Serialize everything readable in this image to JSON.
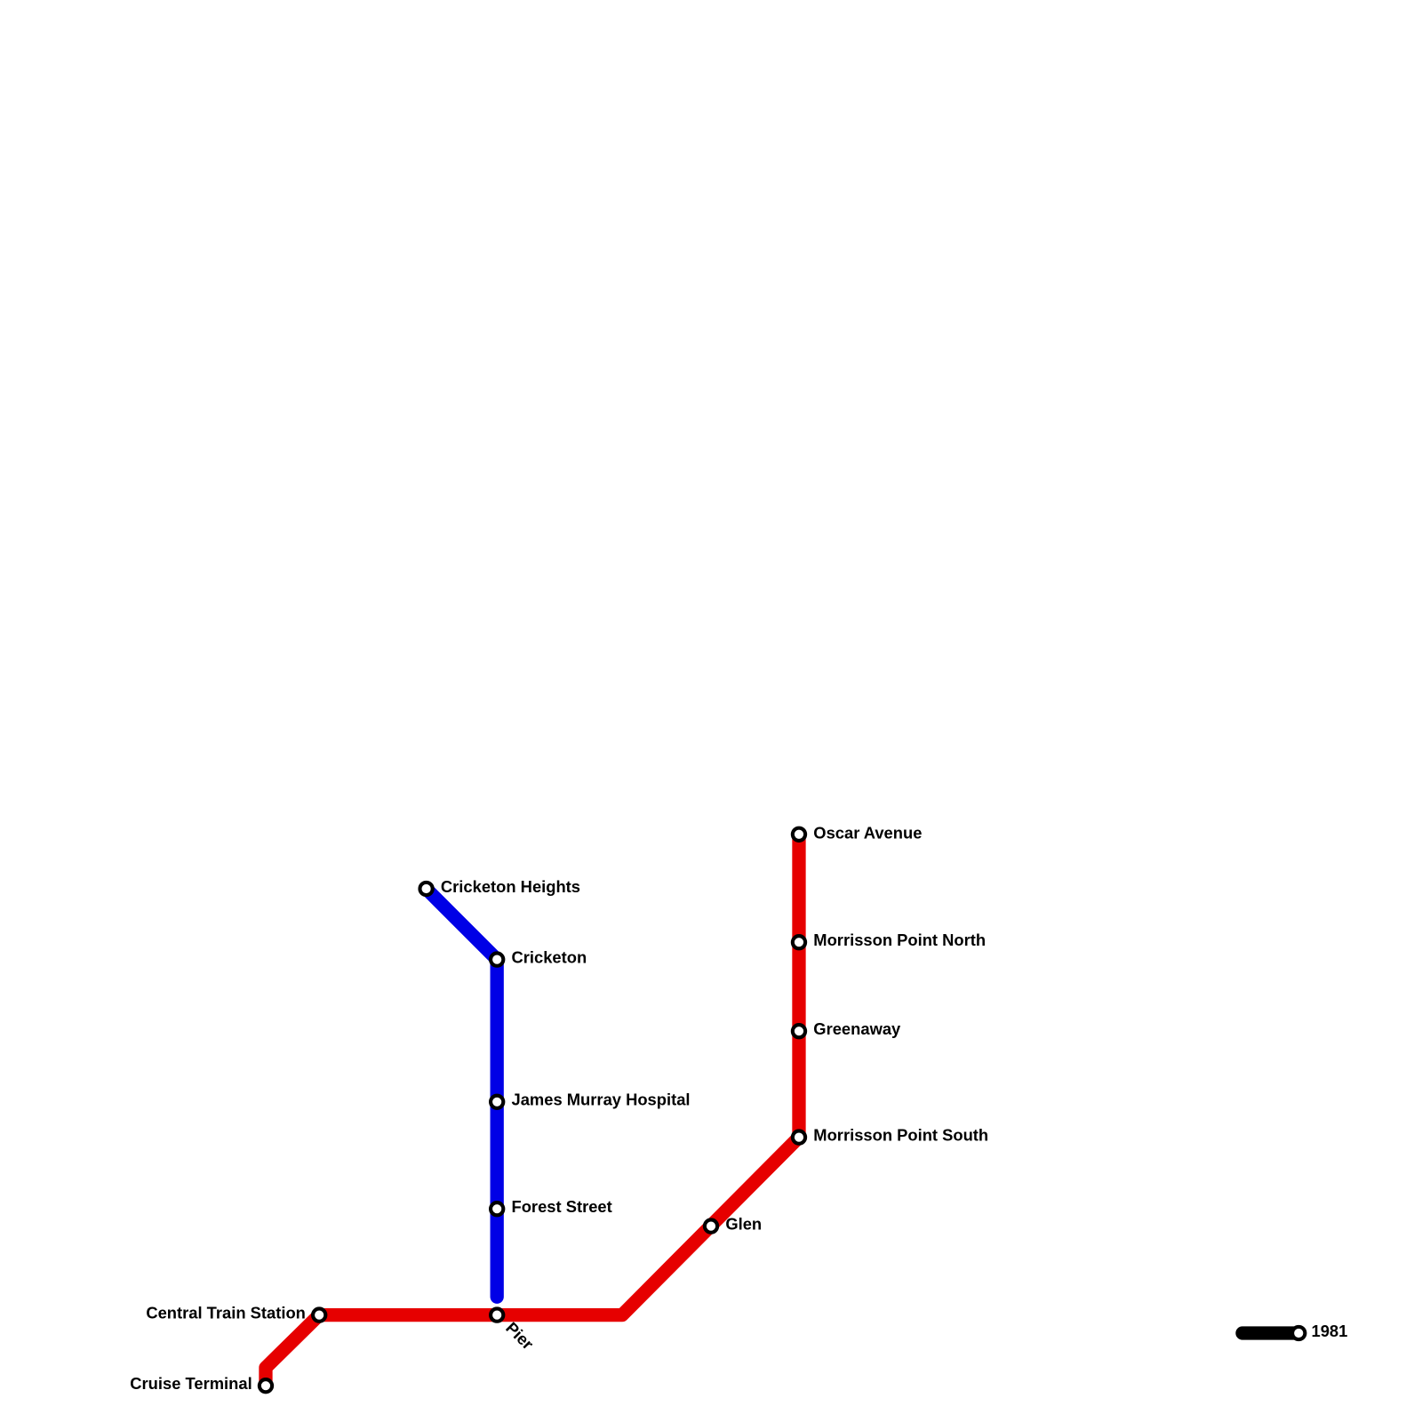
{
  "stations": [
    {
      "label": "Oscar Avenue"
    },
    {
      "label": "Cricketon Heights"
    },
    {
      "label": "Morrisson Point North"
    },
    {
      "label": "Cricketon"
    },
    {
      "label": "Greenaway"
    },
    {
      "label": "James Murray Hospital"
    },
    {
      "label": "Morrisson Point South"
    },
    {
      "label": "Forest Street"
    },
    {
      "label": "Glen"
    },
    {
      "label": "Central Train Station"
    },
    {
      "label": "Pier"
    },
    {
      "label": "Cruise Terminal"
    }
  ],
  "legend": {
    "label": "1981"
  }
}
